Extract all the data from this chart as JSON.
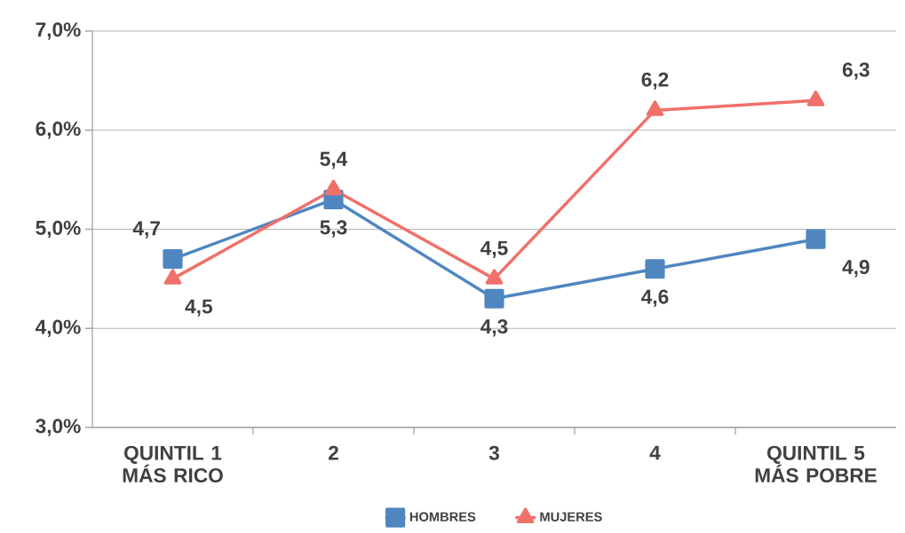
{
  "chart_data": {
    "type": "line",
    "categories": [
      "QUINTIL 1 MÁS RICO",
      "2",
      "3",
      "4",
      "QUINTIL 5 MÁS POBRE"
    ],
    "series": [
      {
        "name": "HOMBRES",
        "color": "#4f86c0",
        "marker": "square",
        "values": [
          4.7,
          5.3,
          4.3,
          4.6,
          4.9
        ],
        "value_labels": [
          "4,7",
          "5,3",
          "4,3",
          "4,6",
          "4,9"
        ]
      },
      {
        "name": "MUJERES",
        "color": "#f0706a",
        "marker": "triangle",
        "values": [
          4.5,
          5.4,
          4.5,
          6.2,
          6.3
        ],
        "value_labels": [
          "4,5",
          "5,4",
          "4,5",
          "6,2",
          "6,3"
        ]
      }
    ],
    "ylim": [
      3,
      7
    ],
    "yticks": [
      {
        "value": 3,
        "label": "3,0%"
      },
      {
        "value": 4,
        "label": "4,0%"
      },
      {
        "value": 5,
        "label": "5,0%"
      },
      {
        "value": 6,
        "label": "6,0%"
      },
      {
        "value": 7,
        "label": "7,0%"
      }
    ],
    "grid": "y",
    "legend": "bottom",
    "line_style": "solid"
  }
}
